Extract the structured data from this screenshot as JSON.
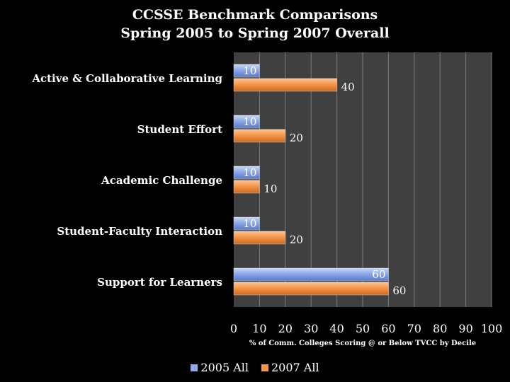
{
  "chart_data": {
    "type": "bar",
    "orientation": "horizontal",
    "title": [
      "CCSSE Benchmark Comparisons",
      "Spring 2005 to Spring 2007 Overall"
    ],
    "categories": [
      "Active & Collaborative Learning",
      "Student Effort",
      "Academic Challenge",
      "Student-Faculty Interaction",
      "Support for Learners"
    ],
    "series": [
      {
        "name": "2005 All",
        "values": [
          10,
          10,
          10,
          10,
          60
        ],
        "color": "#8EA9E8"
      },
      {
        "name": "2007 All",
        "values": [
          40,
          20,
          10,
          20,
          60
        ],
        "color": "#F79646"
      }
    ],
    "xlabel": "% of Comm. Colleges Scoring @ or Below TVCC by Decile",
    "ylabel": "",
    "xlim": [
      0,
      100
    ],
    "xticks": [
      "0",
      "10",
      "20",
      "30",
      "40",
      "50",
      "60",
      "70",
      "80",
      "90",
      "100"
    ],
    "grid": true,
    "legend_position": "bottom",
    "plot_background": "#404040"
  }
}
